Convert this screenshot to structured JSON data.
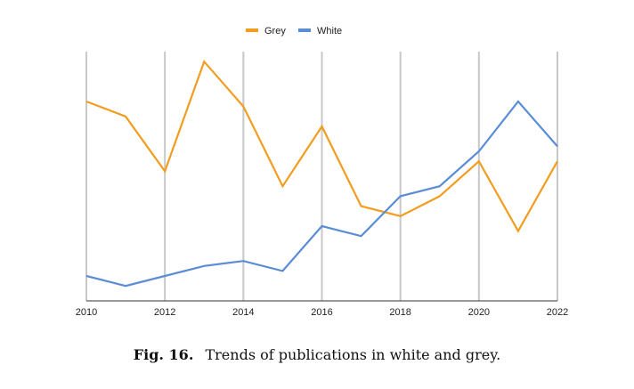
{
  "caption": {
    "label": "Fig. 16.",
    "text": "Trends of publications in white and grey."
  },
  "chart_data": {
    "type": "line",
    "x": [
      2010,
      2011,
      2012,
      2013,
      2014,
      2015,
      2016,
      2017,
      2018,
      2019,
      2020,
      2021,
      2022
    ],
    "x_tick_labels": [
      "2010",
      "2012",
      "2014",
      "2016",
      "2018",
      "2020",
      "2022"
    ],
    "series": [
      {
        "name": "Grey",
        "color": "#f29d1f",
        "values": [
          40,
          37,
          26,
          48,
          39,
          23,
          35,
          19,
          17,
          21,
          28,
          14,
          28
        ]
      },
      {
        "name": "White",
        "color": "#5b8dd6",
        "values": [
          5,
          3,
          5,
          7,
          8,
          6,
          15,
          13,
          21,
          23,
          30,
          40,
          31
        ]
      }
    ],
    "xlim": [
      2010,
      2022
    ],
    "ylim": [
      0,
      50
    ],
    "grid": "vertical",
    "legend": "top-center",
    "title": "",
    "xlabel": "",
    "ylabel": ""
  }
}
